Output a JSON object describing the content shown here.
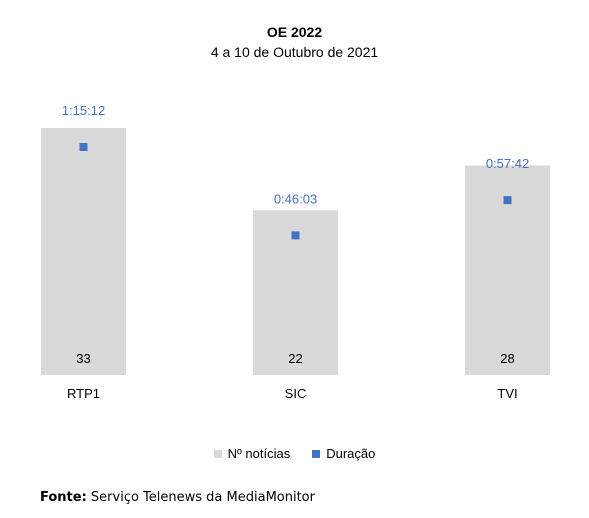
{
  "chart_data": {
    "type": "bar",
    "title": "OE 2022",
    "subtitle": "4 a 10 de Outubro de 2021",
    "categories": [
      "RTP1",
      "SIC",
      "TVI"
    ],
    "series": [
      {
        "name": "Nº notícias",
        "type": "bar",
        "values": [
          33,
          22,
          28
        ],
        "color": "#d9d9d9"
      },
      {
        "name": "Duração",
        "type": "scatter",
        "values": [
          "1:15:12",
          "0:46:03",
          "0:57:42"
        ],
        "seconds": [
          4512,
          2763,
          3462
        ],
        "color": "#4472c4"
      }
    ],
    "legend_position": "bottom",
    "grid": false
  },
  "source": {
    "label": "Fonte:",
    "text": "Serviço Telenews da MediaMonitor"
  },
  "colors": {
    "bar": "#d9d9d9",
    "marker": "#4472c4",
    "duration_label": "#4472c4"
  }
}
